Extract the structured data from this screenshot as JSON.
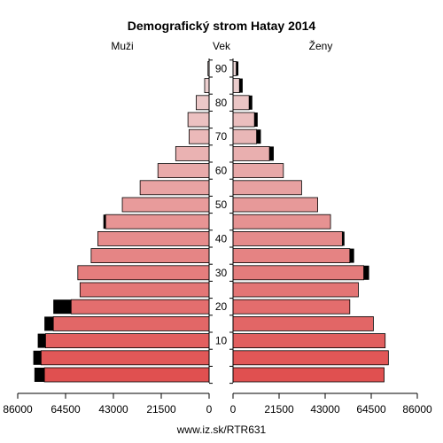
{
  "title": "Demografický strom Hatay 2014",
  "labels": {
    "left": "Muži",
    "middle": "Vek",
    "right": "Ženy"
  },
  "source": "www.iz.sk/RTR631",
  "colors": {
    "bar_outline": "#000000",
    "excess": "#000000",
    "male_base": "#e05050",
    "female_base": "#e05050"
  },
  "chart_data": {
    "type": "bar",
    "orientation": "horizontal-pyramid",
    "age_groups": [
      "0-4",
      "5-9",
      "10-14",
      "15-19",
      "20-24",
      "25-29",
      "30-34",
      "35-39",
      "40-44",
      "45-49",
      "50-54",
      "55-59",
      "60-64",
      "65-69",
      "70-74",
      "75-79",
      "80-84",
      "85-89",
      "90+"
    ],
    "age_ticks": [
      "10",
      "20",
      "30",
      "40",
      "50",
      "60",
      "70",
      "80",
      "90"
    ],
    "x_ticks_left": [
      "86000",
      "64500",
      "43000",
      "21500",
      "0"
    ],
    "x_ticks_right": [
      "0",
      "21500",
      "43000",
      "64500",
      "86000"
    ],
    "xlim": [
      0,
      86000
    ],
    "series": [
      {
        "name": "Muži",
        "values": [
          74000,
          75500,
          73500,
          70000,
          62000,
          58000,
          59000,
          53000,
          50000,
          46500,
          39000,
          31000,
          23000,
          15000,
          9000,
          9500,
          5800,
          2000,
          500
        ],
        "excess": [
          4500,
          3500,
          3500,
          4000,
          8000,
          0,
          0,
          0,
          0,
          1000,
          0,
          0,
          0,
          0,
          0,
          0,
          0,
          0,
          0
        ]
      },
      {
        "name": "Ženy",
        "values": [
          70500,
          72500,
          71000,
          65500,
          54500,
          58500,
          61000,
          54500,
          51000,
          45500,
          39500,
          32000,
          23500,
          17000,
          11000,
          10000,
          7500,
          3000,
          1500
        ],
        "excess": [
          0,
          0,
          0,
          0,
          0,
          0,
          2500,
          2000,
          1000,
          0,
          0,
          0,
          0,
          2000,
          2000,
          1500,
          1500,
          1500,
          1000
        ]
      }
    ]
  }
}
